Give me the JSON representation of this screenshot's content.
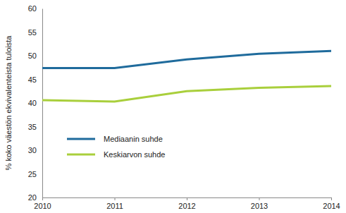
{
  "chart_data": {
    "type": "line",
    "y_label": "% koko väestön ekvivalenteista tuloista",
    "x": [
      2010,
      2011,
      2012,
      2013,
      2014
    ],
    "xlim": [
      2010,
      2014
    ],
    "xticks": [
      2010,
      2011,
      2012,
      2013,
      2014
    ],
    "ylim": [
      20,
      60
    ],
    "yticks": [
      20,
      25,
      30,
      35,
      40,
      45,
      50,
      55,
      60
    ],
    "grid": false,
    "legend": "lower left",
    "series": [
      {
        "name": "Mediaanin suhde",
        "color": "#1f6b9c",
        "values": [
          47.4,
          47.4,
          49.2,
          50.4,
          51.0
        ]
      },
      {
        "name": "Keskiarvon suhde",
        "color": "#a9cf3c",
        "values": [
          40.6,
          40.3,
          42.5,
          43.2,
          43.6
        ]
      }
    ]
  }
}
